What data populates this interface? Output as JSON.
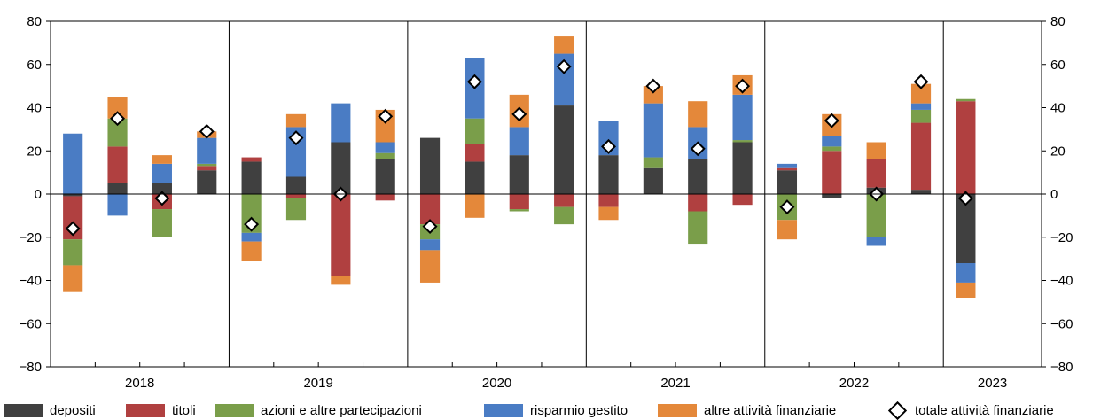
{
  "chart_data": {
    "type": "bar",
    "stacked": true,
    "grid": false,
    "legend_placement": "bottom",
    "ylim": [
      -80,
      80
    ],
    "yticks": [
      -80,
      -60,
      -40,
      -20,
      0,
      20,
      40,
      60,
      80
    ],
    "ytick_labels": [
      "−80",
      "−60",
      "−40",
      "−20",
      "0",
      "20",
      "40",
      "60",
      "80"
    ],
    "right_axis_mirrors_left": true,
    "year_groups": [
      {
        "label": "2018",
        "quarters": 4
      },
      {
        "label": "2019",
        "quarters": 4
      },
      {
        "label": "2020",
        "quarters": 4
      },
      {
        "label": "2021",
        "quarters": 4
      },
      {
        "label": "2022",
        "quarters": 4
      },
      {
        "label": "2023",
        "quarters": 1
      }
    ],
    "series": [
      {
        "name": "depositi",
        "color": "#404040",
        "values": [
          -1,
          5,
          5,
          11,
          15,
          8,
          24,
          16,
          26,
          15,
          18,
          41,
          18,
          12,
          16,
          24,
          11,
          -2,
          3,
          2,
          -32
        ]
      },
      {
        "name": "titoli",
        "color": "#b04040",
        "values": [
          -20,
          17,
          -7,
          2,
          2,
          -2,
          -38,
          -3,
          -14,
          8,
          -7,
          -6,
          -6,
          0,
          -8,
          -5,
          1,
          20,
          13,
          31,
          43
        ]
      },
      {
        "name": "azioni e altre partecipazioni",
        "color": "#7a9e4a",
        "values": [
          -12,
          13,
          -13,
          1,
          -18,
          -10,
          0,
          3,
          -7,
          12,
          -1,
          -8,
          0,
          5,
          -15,
          1,
          -12,
          2,
          -20,
          6,
          1
        ]
      },
      {
        "name": "risparmio gestito",
        "color": "#4a7cc4",
        "values": [
          28,
          -10,
          9,
          12,
          -4,
          23,
          18,
          5,
          -5,
          28,
          13,
          24,
          16,
          25,
          15,
          21,
          2,
          5,
          -4,
          3,
          -9
        ]
      },
      {
        "name": "altre attività finanziarie",
        "color": "#e4883a",
        "values": [
          -12,
          10,
          4,
          3,
          -9,
          6,
          -4,
          15,
          -15,
          -11,
          15,
          8,
          -6,
          8,
          12,
          9,
          -9,
          10,
          8,
          9,
          -7
        ]
      }
    ],
    "total": {
      "name": "totale attività finanziarie",
      "values": [
        -16,
        35,
        -2,
        29,
        -14,
        26,
        0,
        36,
        -15,
        52,
        37,
        59,
        22,
        50,
        21,
        50,
        -6,
        34,
        0,
        52,
        -2
      ]
    }
  }
}
